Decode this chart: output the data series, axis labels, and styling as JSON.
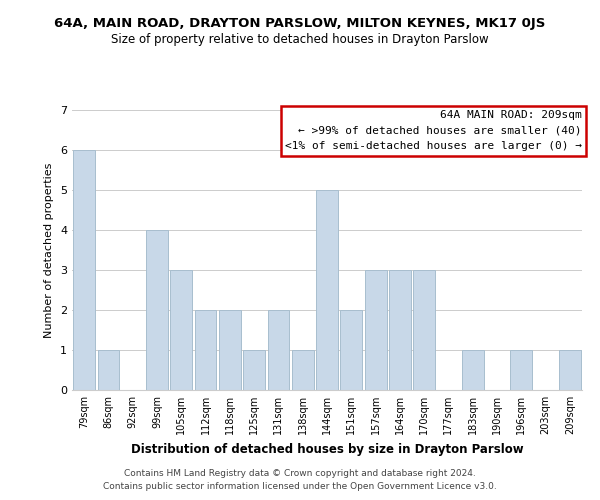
{
  "title": "64A, MAIN ROAD, DRAYTON PARSLOW, MILTON KEYNES, MK17 0JS",
  "subtitle": "Size of property relative to detached houses in Drayton Parslow",
  "xlabel": "Distribution of detached houses by size in Drayton Parslow",
  "ylabel": "Number of detached properties",
  "footnote1": "Contains HM Land Registry data © Crown copyright and database right 2024.",
  "footnote2": "Contains public sector information licensed under the Open Government Licence v3.0.",
  "bar_labels": [
    "79sqm",
    "86sqm",
    "92sqm",
    "99sqm",
    "105sqm",
    "112sqm",
    "118sqm",
    "125sqm",
    "131sqm",
    "138sqm",
    "144sqm",
    "151sqm",
    "157sqm",
    "164sqm",
    "170sqm",
    "177sqm",
    "183sqm",
    "190sqm",
    "196sqm",
    "203sqm",
    "209sqm"
  ],
  "bar_values": [
    6,
    1,
    0,
    4,
    3,
    2,
    2,
    1,
    2,
    1,
    5,
    2,
    3,
    3,
    3,
    0,
    1,
    0,
    1,
    0,
    1
  ],
  "bar_color": "#c8d8e8",
  "bar_edgecolor": "#a8bece",
  "ylim": [
    0,
    7
  ],
  "yticks": [
    0,
    1,
    2,
    3,
    4,
    5,
    6,
    7
  ],
  "grid_color": "#cccccc",
  "background_color": "#ffffff",
  "box_title": "64A MAIN ROAD: 209sqm",
  "box_line1": "← >99% of detached houses are smaller (40)",
  "box_line2": "<1% of semi-detached houses are larger (0) →",
  "box_edgecolor": "#cc0000"
}
